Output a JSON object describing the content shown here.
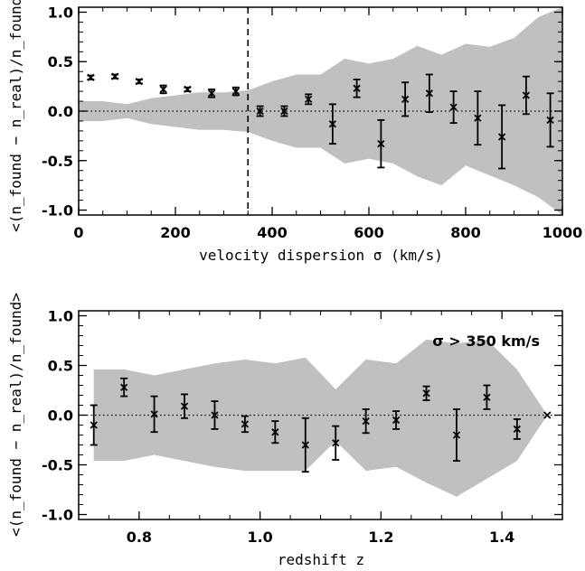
{
  "chart_data": [
    {
      "type": "scatter",
      "xlabel": "velocity dispersion σ (km/s)",
      "ylabel": "<(n_found − n_real)/n_found>",
      "xlim": [
        0,
        1000
      ],
      "ylim": [
        -1.05,
        1.05
      ],
      "xticks": [
        0,
        200,
        400,
        600,
        800,
        1000
      ],
      "yticks": [
        -1.0,
        -0.5,
        0.0,
        0.5,
        1.0
      ],
      "xtick_labels": [
        "0",
        "200",
        "400",
        "600",
        "800",
        "1000"
      ],
      "ytick_labels": [
        "-1.0",
        "-0.5",
        "0.0",
        "0.5",
        "1.0"
      ],
      "vline": 350,
      "hline": 0,
      "band": {
        "x": [
          0,
          50,
          100,
          150,
          200,
          250,
          300,
          350,
          400,
          450,
          500,
          550,
          600,
          650,
          700,
          750,
          800,
          850,
          900,
          950,
          1000
        ],
        "upper": [
          0.1,
          0.1,
          0.07,
          0.13,
          0.16,
          0.19,
          0.19,
          0.21,
          0.3,
          0.37,
          0.37,
          0.53,
          0.48,
          0.53,
          0.66,
          0.57,
          0.68,
          0.65,
          0.74,
          0.95,
          1.05
        ],
        "lower": [
          -0.1,
          -0.1,
          -0.07,
          -0.13,
          -0.16,
          -0.19,
          -0.19,
          -0.21,
          -0.3,
          -0.37,
          -0.37,
          -0.53,
          -0.48,
          -0.53,
          -0.66,
          -0.75,
          -0.55,
          -0.65,
          -0.75,
          -0.87,
          -1.05
        ]
      },
      "points": {
        "x": [
          25,
          75,
          125,
          175,
          225,
          275,
          325,
          375,
          425,
          475,
          525,
          575,
          625,
          675,
          725,
          775,
          825,
          875,
          925,
          975
        ],
        "y": [
          0.34,
          0.35,
          0.3,
          0.22,
          0.22,
          0.18,
          0.2,
          0.0,
          0.0,
          0.12,
          -0.13,
          0.23,
          -0.33,
          0.12,
          0.18,
          0.04,
          -0.07,
          -0.26,
          0.16,
          -0.09
        ],
        "err": [
          0.02,
          0.02,
          0.02,
          0.04,
          0.02,
          0.04,
          0.04,
          0.05,
          0.05,
          0.05,
          0.2,
          0.09,
          0.24,
          0.17,
          0.19,
          0.16,
          0.27,
          0.32,
          0.19,
          0.27
        ]
      }
    },
    {
      "type": "scatter",
      "xlabel": "redshift z",
      "ylabel": "<(n_found − n_real)/n_found>",
      "annotation": "σ > 350 km/s",
      "xlim": [
        0.7,
        1.5
      ],
      "ylim": [
        -1.05,
        1.05
      ],
      "xticks": [
        0.8,
        1.0,
        1.2,
        1.4
      ],
      "yticks": [
        -1.0,
        -0.5,
        0.0,
        0.5,
        1.0
      ],
      "xtick_labels": [
        "0.8",
        "1.0",
        "1.2",
        "1.4"
      ],
      "ytick_labels": [
        "-1.0",
        "-0.5",
        "0.0",
        "0.5",
        "1.0"
      ],
      "hline": 0,
      "band": {
        "x": [
          0.725,
          0.775,
          0.825,
          0.875,
          0.925,
          0.975,
          1.025,
          1.075,
          1.125,
          1.175,
          1.225,
          1.275,
          1.325,
          1.375,
          1.425,
          1.475
        ],
        "upper": [
          0.46,
          0.46,
          0.4,
          0.46,
          0.52,
          0.56,
          0.52,
          0.58,
          0.26,
          0.56,
          0.52,
          0.76,
          0.72,
          0.76,
          0.46,
          0.0
        ],
        "lower": [
          -0.46,
          -0.46,
          -0.4,
          -0.46,
          -0.52,
          -0.56,
          -0.56,
          -0.56,
          -0.26,
          -0.56,
          -0.52,
          -0.68,
          -0.82,
          -0.64,
          -0.46,
          0.0
        ]
      },
      "points": {
        "x": [
          0.725,
          0.775,
          0.825,
          0.875,
          0.925,
          0.975,
          1.025,
          1.075,
          1.125,
          1.175,
          1.225,
          1.275,
          1.325,
          1.375,
          1.425,
          1.475
        ],
        "y": [
          -0.1,
          0.28,
          0.01,
          0.09,
          0.0,
          -0.09,
          -0.17,
          -0.3,
          -0.28,
          -0.06,
          -0.05,
          0.22,
          -0.2,
          0.18,
          -0.14,
          0.0
        ],
        "err": [
          0.2,
          0.09,
          0.18,
          0.12,
          0.14,
          0.08,
          0.11,
          0.27,
          0.17,
          0.12,
          0.09,
          0.07,
          0.26,
          0.12,
          0.1,
          0.0
        ]
      }
    }
  ]
}
